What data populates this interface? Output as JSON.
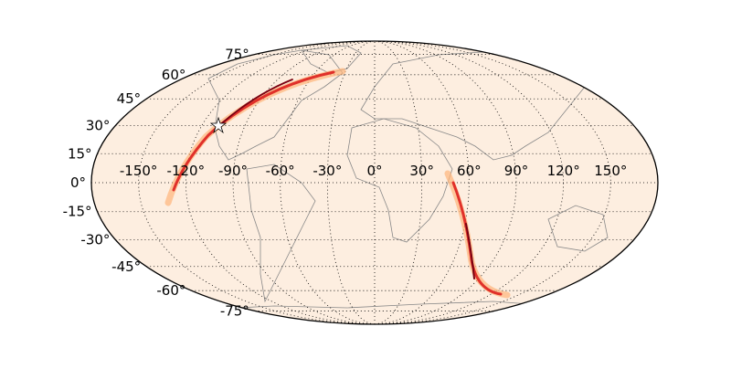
{
  "map": {
    "projection": "mollweide",
    "background_color": "#fdeee0",
    "graticule_style": "dotted",
    "longitude_labels": [
      {
        "value": -150,
        "label": "-150°"
      },
      {
        "value": -120,
        "label": "-120°"
      },
      {
        "value": -90,
        "label": "-90°"
      },
      {
        "value": -60,
        "label": "-60°"
      },
      {
        "value": -30,
        "label": "-30°"
      },
      {
        "value": 0,
        "label": "0°"
      },
      {
        "value": 30,
        "label": "30°"
      },
      {
        "value": 60,
        "label": "60°"
      },
      {
        "value": 90,
        "label": "90°"
      },
      {
        "value": 120,
        "label": "120°"
      },
      {
        "value": 150,
        "label": "150°"
      }
    ],
    "latitude_labels": [
      {
        "value": 75,
        "label": "75°"
      },
      {
        "value": 60,
        "label": "60°"
      },
      {
        "value": 45,
        "label": "45°"
      },
      {
        "value": 30,
        "label": "30°"
      },
      {
        "value": 15,
        "label": "15°"
      },
      {
        "value": 0,
        "label": "0°"
      },
      {
        "value": -15,
        "label": "-15°"
      },
      {
        "value": -30,
        "label": "-30°"
      },
      {
        "value": -45,
        "label": "-45°"
      },
      {
        "value": -60,
        "label": "-60°"
      },
      {
        "value": -75,
        "label": "-75°"
      }
    ],
    "probability_colormap": [
      "#fdeee0",
      "#fdb57a",
      "#f0502a",
      "#b5001c",
      "#5a0010"
    ],
    "marker": {
      "icon": "star-icon",
      "color": "#ffffff"
    }
  }
}
